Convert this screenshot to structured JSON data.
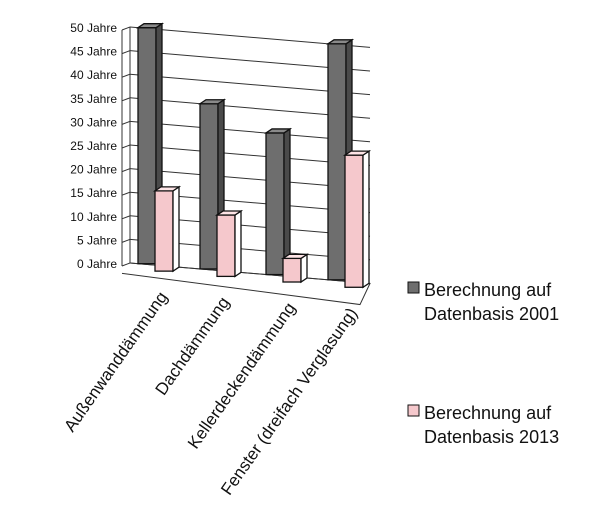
{
  "chart_data": {
    "type": "bar",
    "style": "3d-clustered-column",
    "categories": [
      "Außenwanddämmung",
      "Dachdämmung",
      "Kellerdeckendämmung",
      "Fenster (dreifach Verglasung)"
    ],
    "series": [
      {
        "name": "Berechnung auf Datenbasis 2001",
        "name_lines": [
          "Berechnung auf",
          "Datenbasis 2001"
        ],
        "values": [
          50,
          35,
          30,
          50
        ],
        "color": "#6e6e6e"
      },
      {
        "name": "Berechnung auf Datenbasis 2013",
        "name_lines": [
          "Berechnung auf",
          "Datenbasis 2013"
        ],
        "values": [
          17,
          13,
          5,
          28
        ],
        "color": "#f5c8cc"
      }
    ],
    "yticks": [
      "0 Jahre",
      "5 Jahre",
      "10 Jahre",
      "15 Jahre",
      "20 Jahre",
      "25 Jahre",
      "30 Jahre",
      "35 Jahre",
      "40 Jahre",
      "45 Jahre",
      "50 Jahre"
    ],
    "ylim": [
      0,
      50
    ],
    "grid": true,
    "legend": "right"
  }
}
